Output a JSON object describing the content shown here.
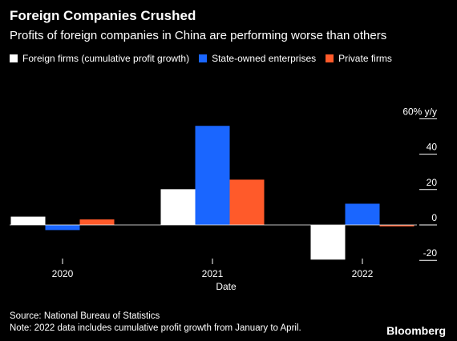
{
  "header": {
    "title": "Foreign Companies Crushed",
    "subtitle": "Profits of foreign companies in China are performing worse than others"
  },
  "footer": {
    "source": "Source: National Bureau of Statistics",
    "note": "Note: 2022 data includes cumulative profit growth from January to April.",
    "brand": "Bloomberg"
  },
  "chart_data": {
    "type": "bar",
    "title": "Foreign Companies Crushed",
    "subtitle": "Profits of foreign companies in China are performing worse than others",
    "xlabel": "Date",
    "ylabel": "",
    "categories": [
      "2020",
      "2021",
      "2022"
    ],
    "series": [
      {
        "name": "Foreign firms (cumulative profit growth)",
        "color": "#ffffff",
        "values": [
          4.7,
          20.2,
          -19.6
        ]
      },
      {
        "name": "State-owned enterprises",
        "color": "#1a66ff",
        "values": [
          -2.9,
          56.0,
          12.0
        ]
      },
      {
        "name": "Private firms",
        "color": "#ff5a2a",
        "values": [
          3.1,
          25.6,
          -0.8
        ]
      }
    ],
    "yticks": [
      {
        "value": 60,
        "label": "60% y/y"
      },
      {
        "value": 40,
        "label": "40"
      },
      {
        "value": 20,
        "label": "20"
      },
      {
        "value": 0,
        "label": "0"
      },
      {
        "value": -20,
        "label": "-20"
      }
    ],
    "ylim": [
      -25,
      75
    ],
    "axis_position": "right",
    "legend_position": "top-left",
    "grid": false
  }
}
